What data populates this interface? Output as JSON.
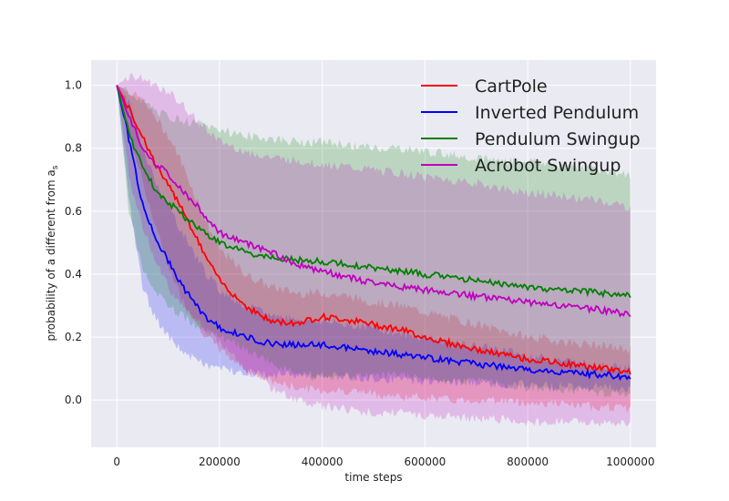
{
  "chart_data": {
    "type": "line",
    "xlabel": "time steps",
    "ylabel_prefix": "probability of a different from a",
    "ylabel_subscript": "s",
    "xlim": [
      -50000,
      1050000
    ],
    "ylim": [
      -0.15,
      1.08
    ],
    "xticks": [
      0,
      200000,
      400000,
      600000,
      800000,
      1000000
    ],
    "xtick_labels": [
      "0",
      "200000",
      "400000",
      "600000",
      "800000",
      "1000000"
    ],
    "yticks": [
      0.0,
      0.2,
      0.4,
      0.6,
      0.8,
      1.0
    ],
    "ytick_labels": [
      "0.0",
      "0.2",
      "0.4",
      "0.6",
      "0.8",
      "1.0"
    ],
    "grid": true,
    "legend_position": "top-right",
    "x": [
      0,
      25000,
      50000,
      75000,
      100000,
      125000,
      150000,
      175000,
      200000,
      250000,
      300000,
      350000,
      400000,
      450000,
      500000,
      550000,
      600000,
      650000,
      700000,
      750000,
      800000,
      850000,
      900000,
      950000,
      1000000
    ],
    "series": [
      {
        "name": "CartPole",
        "color": "#ff0000",
        "values": [
          1.0,
          0.92,
          0.84,
          0.75,
          0.68,
          0.62,
          0.53,
          0.45,
          0.38,
          0.3,
          0.25,
          0.245,
          0.265,
          0.255,
          0.24,
          0.225,
          0.2,
          0.18,
          0.16,
          0.145,
          0.13,
          0.12,
          0.11,
          0.1,
          0.09
        ],
        "lower": [
          1.0,
          0.84,
          0.7,
          0.55,
          0.43,
          0.33,
          0.26,
          0.2,
          0.16,
          0.1,
          0.06,
          0.04,
          0.03,
          0.03,
          0.02,
          0.01,
          0.01,
          0.0,
          0.0,
          0.0,
          -0.01,
          -0.01,
          -0.02,
          -0.02,
          -0.03
        ],
        "upper": [
          1.0,
          0.98,
          0.95,
          0.9,
          0.84,
          0.76,
          0.66,
          0.56,
          0.48,
          0.4,
          0.36,
          0.34,
          0.34,
          0.33,
          0.31,
          0.3,
          0.28,
          0.26,
          0.24,
          0.22,
          0.2,
          0.19,
          0.18,
          0.17,
          0.16
        ]
      },
      {
        "name": "Inverted Pendulum",
        "color": "#0000ff",
        "values": [
          1.0,
          0.82,
          0.62,
          0.52,
          0.44,
          0.37,
          0.31,
          0.26,
          0.23,
          0.2,
          0.18,
          0.175,
          0.175,
          0.165,
          0.155,
          0.145,
          0.135,
          0.125,
          0.115,
          0.105,
          0.095,
          0.09,
          0.085,
          0.08,
          0.07
        ],
        "lower": [
          1.0,
          0.62,
          0.36,
          0.26,
          0.2,
          0.16,
          0.13,
          0.11,
          0.1,
          0.09,
          0.08,
          0.08,
          0.08,
          0.075,
          0.07,
          0.065,
          0.06,
          0.06,
          0.055,
          0.05,
          0.05,
          0.045,
          0.045,
          0.04,
          0.04
        ],
        "upper": [
          1.0,
          0.94,
          0.8,
          0.7,
          0.62,
          0.54,
          0.47,
          0.4,
          0.35,
          0.3,
          0.27,
          0.26,
          0.25,
          0.24,
          0.23,
          0.21,
          0.2,
          0.18,
          0.17,
          0.16,
          0.14,
          0.13,
          0.12,
          0.11,
          0.1
        ]
      },
      {
        "name": "Pendulum Swingup",
        "color": "#008000",
        "values": [
          1.0,
          0.84,
          0.74,
          0.67,
          0.63,
          0.59,
          0.56,
          0.53,
          0.5,
          0.47,
          0.45,
          0.445,
          0.44,
          0.43,
          0.42,
          0.41,
          0.4,
          0.39,
          0.38,
          0.37,
          0.36,
          0.35,
          0.345,
          0.34,
          0.33
        ],
        "lower": [
          1.0,
          0.58,
          0.42,
          0.34,
          0.3,
          0.27,
          0.24,
          0.22,
          0.2,
          0.16,
          0.12,
          0.08,
          0.07,
          0.07,
          0.08,
          0.08,
          0.07,
          0.06,
          0.06,
          0.05,
          0.04,
          0.03,
          0.03,
          0.02,
          0.02
        ],
        "upper": [
          1.0,
          0.98,
          0.95,
          0.92,
          0.9,
          0.89,
          0.88,
          0.87,
          0.86,
          0.84,
          0.83,
          0.82,
          0.82,
          0.81,
          0.8,
          0.8,
          0.79,
          0.78,
          0.77,
          0.76,
          0.76,
          0.75,
          0.74,
          0.73,
          0.71
        ]
      },
      {
        "name": "Acrobot Swingup",
        "color": "#bf00bf",
        "values": [
          1.0,
          0.9,
          0.8,
          0.75,
          0.72,
          0.67,
          0.63,
          0.58,
          0.53,
          0.5,
          0.47,
          0.43,
          0.41,
          0.39,
          0.37,
          0.36,
          0.35,
          0.34,
          0.33,
          0.32,
          0.31,
          0.3,
          0.295,
          0.285,
          0.27
        ],
        "lower": [
          1.0,
          0.7,
          0.55,
          0.45,
          0.36,
          0.3,
          0.26,
          0.22,
          0.18,
          0.1,
          0.04,
          0.0,
          -0.02,
          -0.03,
          -0.04,
          -0.04,
          -0.05,
          -0.05,
          -0.06,
          -0.06,
          -0.07,
          -0.07,
          -0.07,
          -0.07,
          -0.08
        ],
        "upper": [
          1.0,
          1.03,
          1.02,
          1.0,
          0.98,
          0.94,
          0.9,
          0.86,
          0.82,
          0.79,
          0.77,
          0.76,
          0.75,
          0.74,
          0.73,
          0.72,
          0.71,
          0.7,
          0.69,
          0.67,
          0.66,
          0.65,
          0.64,
          0.63,
          0.61
        ]
      }
    ]
  }
}
